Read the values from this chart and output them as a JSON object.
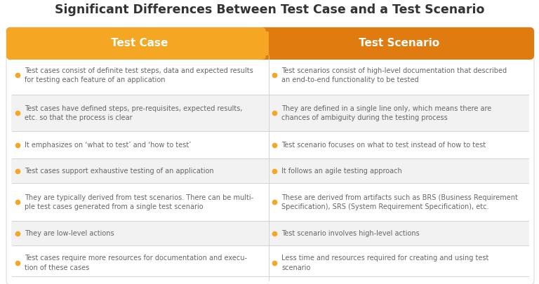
{
  "title": "Significant Differences Between Test Case and a Test Scenario",
  "col1_header": "Test Case",
  "col2_header": "Test Scenario",
  "header_color_left": "#F5A623",
  "header_color_right": "#E07B10",
  "bullet_color": "#F5A623",
  "text_color": "#666666",
  "title_color": "#333333",
  "bg_color": "#FFFFFF",
  "row_colors": [
    "#FFFFFF",
    "#F2F2F2",
    "#FFFFFF",
    "#F2F2F2",
    "#FFFFFF",
    "#F2F2F2",
    "#FFFFFF"
  ],
  "border_color": "#DDDDDD",
  "divider_color": "#CCCCCC",
  "rows": [
    {
      "left": "Test cases consist of definite test steps, data and expected results\nfor testing each feature of an application",
      "right": "Test scenarios consist of high-level documentation that described\nan end-to-end functionality to be tested"
    },
    {
      "left": "Test cases have defined steps, pre-requisites, expected results,\netc. so that the process is clear",
      "right": "They are defined in a single line only, which means there are\nchances of ambiguity during the testing process"
    },
    {
      "left": "It emphasizes on ‘what to test’ and ‘how to test’",
      "right": "Test scenario focuses on what to test instead of how to test"
    },
    {
      "left": "Test cases support exhaustive testing of an application",
      "right": "It follows an agile testing approach"
    },
    {
      "left": "They are typically derived from test scenarios. There can be multi-\nple test cases generated from a single test scenario",
      "right": "These are derived from artifacts such as BRS (Business Requirement\nSpecification), SRS (System Requirement Specification), etc."
    },
    {
      "left": "They are low-level actions",
      "right": "Test scenario involves high-level actions"
    },
    {
      "left": "Test cases require more resources for documentation and execu-\ntion of these cases",
      "right": "Less time and resources required for creating and using test\nscenario"
    }
  ]
}
